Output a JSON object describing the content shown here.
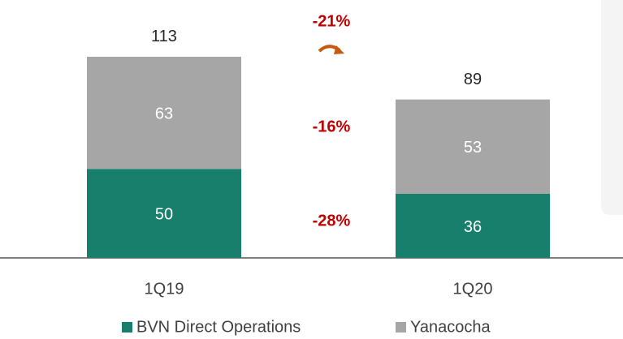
{
  "chart_data": {
    "type": "stacked_bar",
    "categories": [
      "1Q19",
      "1Q20"
    ],
    "series": [
      {
        "name": "BVN Direct Operations",
        "color": "#177f6b",
        "values": [
          50,
          36
        ]
      },
      {
        "name": "Yanacocha",
        "color": "#a6a6a6",
        "values": [
          63,
          53
        ]
      }
    ],
    "totals": [
      113,
      89
    ],
    "annotations": [
      {
        "text": "-21%"
      },
      {
        "text": "-16%"
      },
      {
        "text": "-28%"
      }
    ]
  }
}
